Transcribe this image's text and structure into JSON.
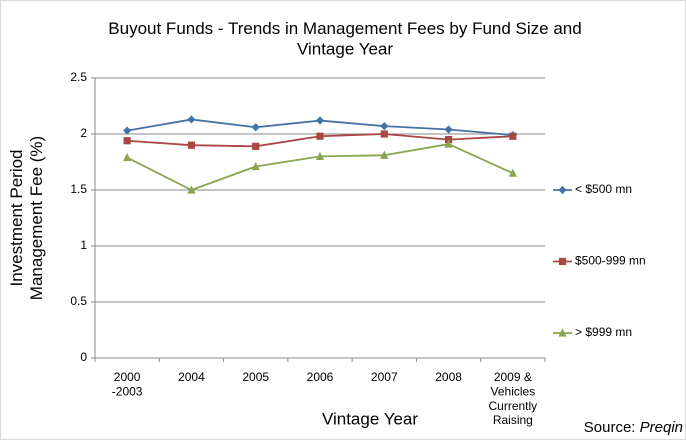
{
  "chart_data": {
    "type": "line",
    "title": "Buyout Funds - Trends in Management Fees by Fund Size and\nVintage Year",
    "x_label": "Vintage Year",
    "y_label": "Investment Period\nManagement Fee (%)",
    "source": {
      "label": "Source:",
      "name": "Preqin"
    },
    "categories": [
      "2000\n-2003",
      "2004",
      "2005",
      "2006",
      "2007",
      "2008",
      "2009 &\nVehicles\nCurrently\nRaising"
    ],
    "series": [
      {
        "name": "< $500 mn",
        "color": "#4572a7",
        "marker": "diamond",
        "values": [
          2.03,
          2.13,
          2.06,
          2.12,
          2.07,
          2.04,
          1.99
        ]
      },
      {
        "name": "$500-999 mn",
        "color": "#aa4643",
        "marker": "square",
        "values": [
          1.94,
          1.9,
          1.89,
          1.98,
          2.0,
          1.95,
          1.98
        ]
      },
      {
        "name": "> $999 mn",
        "color": "#89a54e",
        "marker": "triangle",
        "values": [
          1.79,
          1.5,
          1.71,
          1.8,
          1.81,
          1.91,
          1.65
        ]
      }
    ],
    "ylim": [
      0,
      2.5
    ],
    "yticks": [
      0,
      0.5,
      1,
      1.5,
      2,
      2.5
    ],
    "grid": true,
    "legend": "right"
  }
}
